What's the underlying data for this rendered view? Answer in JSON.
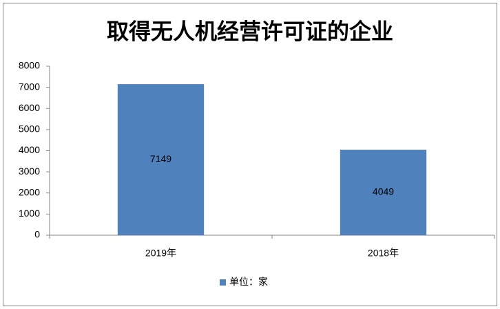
{
  "chart_data": {
    "type": "bar",
    "title": "取得无人机经营许可证的企业",
    "categories": [
      "2019年",
      "2018年"
    ],
    "series": [
      {
        "name": "单位：家",
        "color": "#4f81bd",
        "values": [
          7149,
          4049
        ]
      }
    ],
    "ylim": [
      0,
      8000
    ],
    "yticks": [
      0,
      1000,
      2000,
      3000,
      4000,
      5000,
      6000,
      7000,
      8000
    ],
    "grid": false,
    "legend": "bottom"
  }
}
